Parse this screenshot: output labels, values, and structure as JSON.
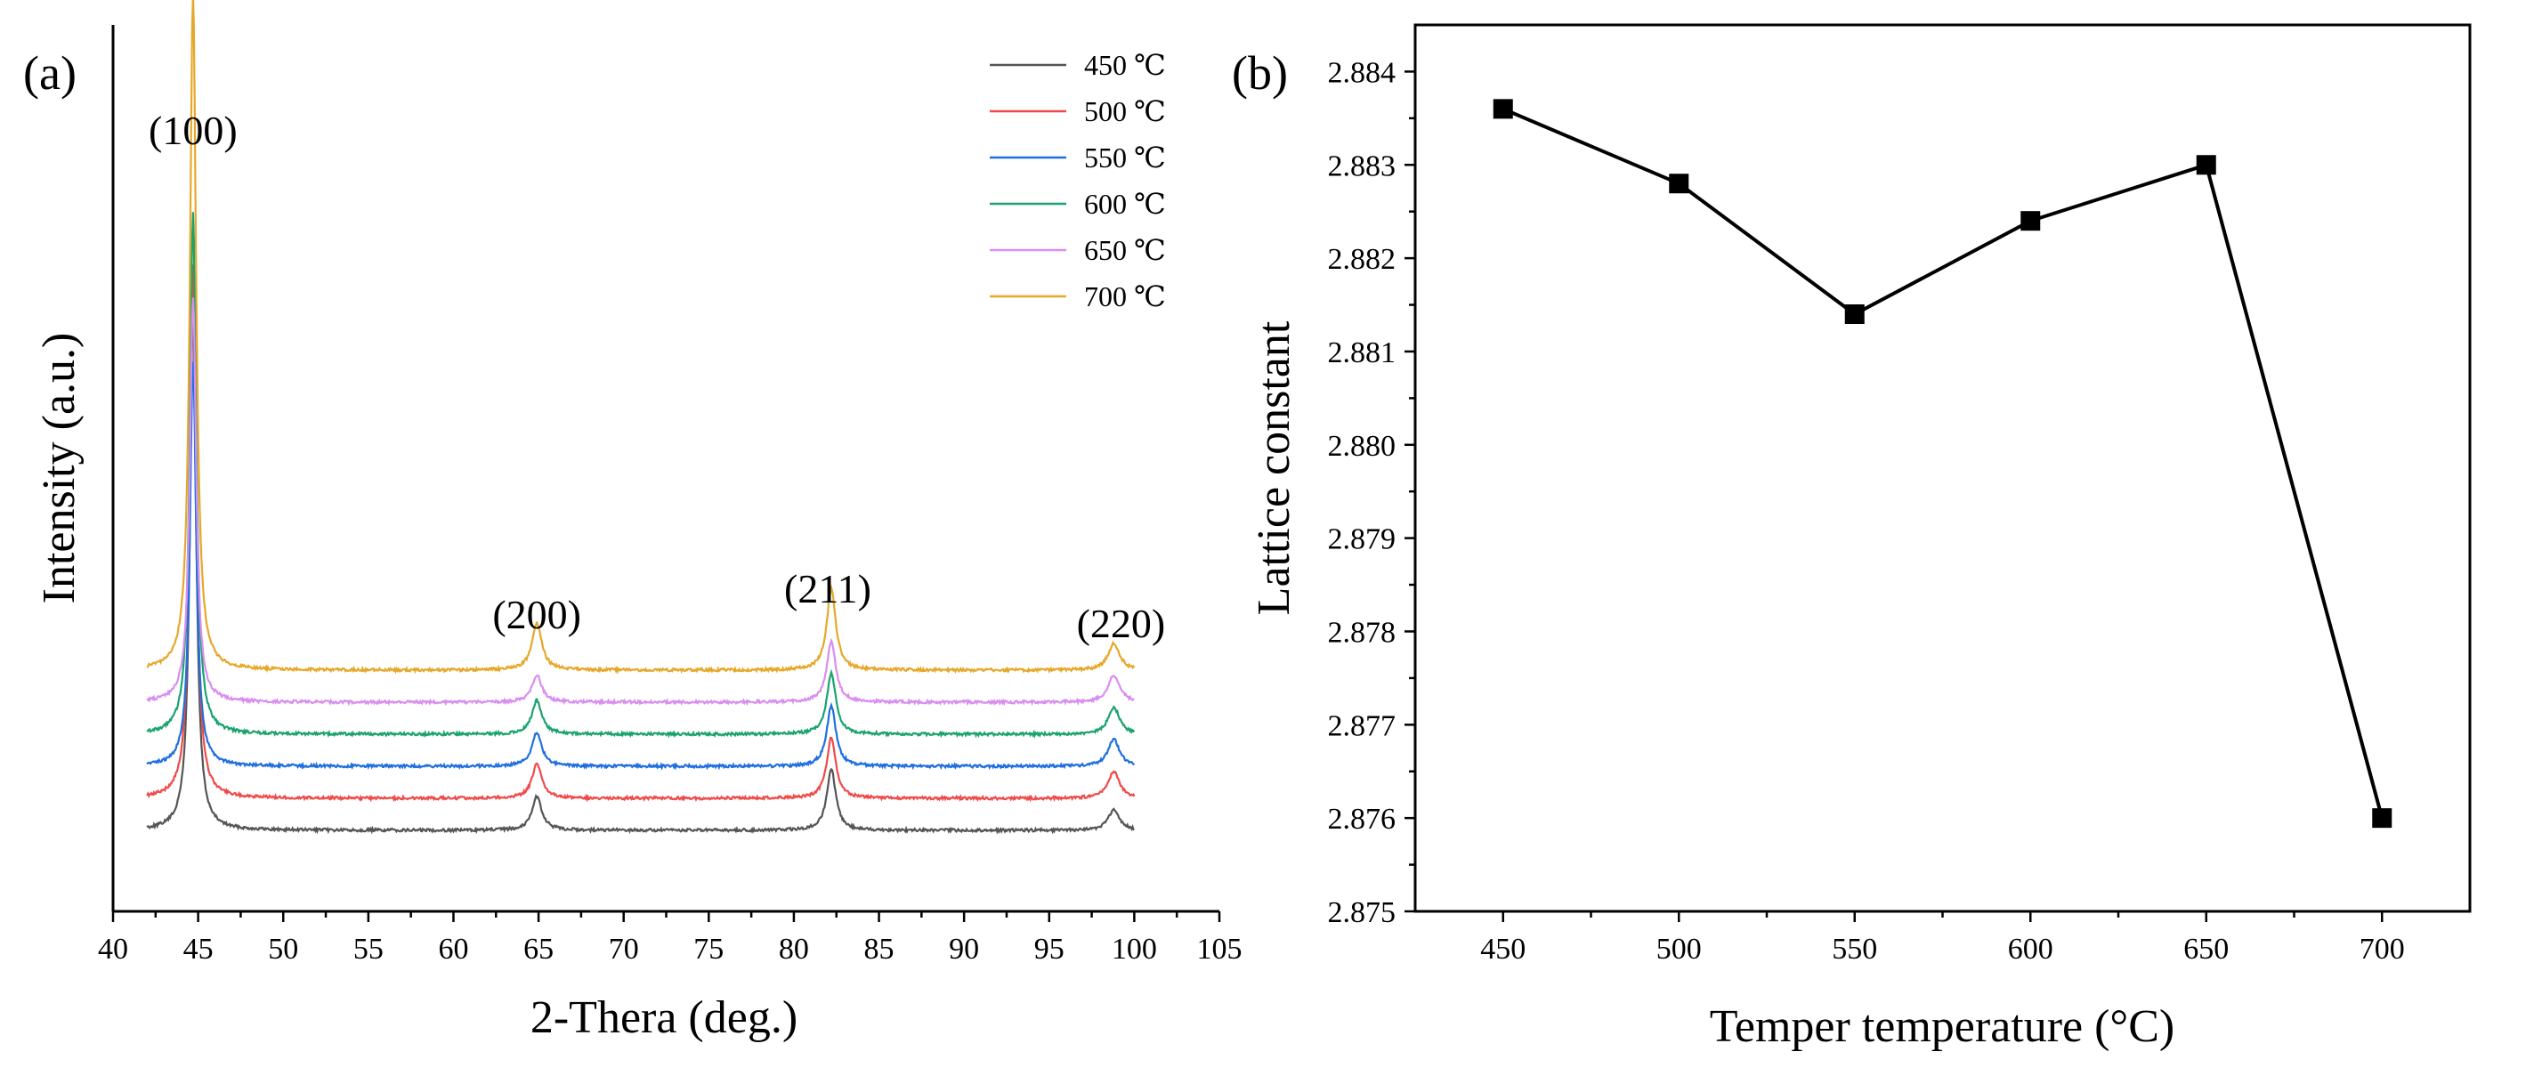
{
  "chart_data": [
    {
      "id": "a",
      "type": "line",
      "panel_label": "(a)",
      "xlabel": "2-Thera (deg.)",
      "ylabel": "Intensity (a.u.)",
      "xlim": [
        40,
        105
      ],
      "xticks": [
        "40",
        "45",
        "50",
        "55",
        "60",
        "65",
        "70",
        "75",
        "80",
        "85",
        "90",
        "95",
        "100",
        "105"
      ],
      "grid": false,
      "legend_position": "top-right",
      "peaks": [
        {
          "label": "(100)",
          "x": 44.7
        },
        {
          "label": "(200)",
          "x": 64.9
        },
        {
          "label": "(211)",
          "x": 82.2
        },
        {
          "label": "(220)",
          "x": 98.8
        }
      ],
      "series": [
        {
          "name": "450 ℃",
          "color": "#555555",
          "baseline": 0.0,
          "peak_heights": [
            0.77,
            0.05,
            0.09,
            0.03
          ]
        },
        {
          "name": "500 ℃",
          "color": "#f04a4a",
          "baseline": 0.1,
          "peak_heights": [
            0.79,
            0.05,
            0.09,
            0.04
          ]
        },
        {
          "name": "550 ℃",
          "color": "#1f6fe0",
          "baseline": 0.2,
          "peak_heights": [
            0.6,
            0.05,
            0.09,
            0.04
          ]
        },
        {
          "name": "600 ℃",
          "color": "#1aa36e",
          "baseline": 0.3,
          "peak_heights": [
            0.77,
            0.05,
            0.09,
            0.04
          ]
        },
        {
          "name": "650 ℃",
          "color": "#d98ef0",
          "baseline": 0.4,
          "peak_heights": [
            0.6,
            0.04,
            0.09,
            0.04
          ]
        },
        {
          "name": "700 ℃",
          "color": "#e6a82a",
          "baseline": 0.5,
          "peak_heights": [
            1.0,
            0.07,
            0.12,
            0.04
          ]
        }
      ]
    },
    {
      "id": "b",
      "type": "line",
      "panel_label": "(b)",
      "xlabel": "Temper temperature (°C)",
      "ylabel": "Lattice constant",
      "xlim": [
        425,
        725
      ],
      "ylim": [
        2.875,
        2.8845
      ],
      "xticks": [
        "450",
        "500",
        "550",
        "600",
        "650",
        "700"
      ],
      "yticks": [
        "2.875",
        "2.876",
        "2.877",
        "2.878",
        "2.879",
        "2.880",
        "2.881",
        "2.882",
        "2.883",
        "2.884"
      ],
      "grid": false,
      "marker": "square",
      "color": "#000000",
      "x": [
        450,
        500,
        550,
        600,
        650,
        700
      ],
      "y": [
        2.8836,
        2.8828,
        2.8814,
        2.8824,
        2.883,
        2.876
      ]
    }
  ]
}
